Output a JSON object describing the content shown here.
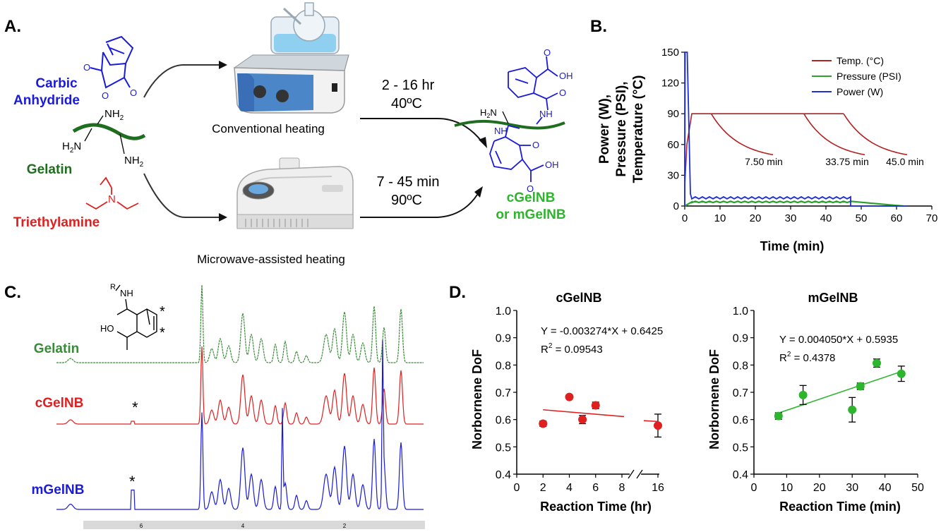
{
  "panels": {
    "a": "A.",
    "b": "B.",
    "c": "C.",
    "d": "D."
  },
  "panel_a": {
    "reagent_carbic": [
      "Carbic",
      "Anhydride"
    ],
    "reagent_gelatin": "Gelatin",
    "reagent_tea": "Triethylamine",
    "nh2": "NH",
    "nh2_sub": "2",
    "h2n_main": "H",
    "h2n_sub": "2",
    "h2n_end": "N",
    "conventional_label": "Conventional  heating",
    "microwave_label": "Microwave-assisted  heating",
    "cond_conv_time": "2 - 16 hr",
    "cond_conv_temp": "40ºC",
    "cond_mw_time": "7 - 45 min",
    "cond_mw_temp": "90ºC",
    "product_label_1": "cGelNB",
    "product_label_2": "or mGelNB",
    "oh": "OH",
    "nh": "NH",
    "o": "O",
    "n": "N",
    "colors": {
      "blue": "#1a1adb",
      "green": "#1f6e1f",
      "red": "#e02020",
      "product_green": "#2db52d"
    }
  },
  "panel_b": {
    "chart_data": {
      "type": "line",
      "title": "",
      "xlabel": "Time (min)",
      "ylabel_lines": [
        "Power (W),",
        "Pressure (PSI),",
        "Temperature (°C)"
      ],
      "xlim": [
        0,
        70
      ],
      "ylim": [
        0,
        150
      ],
      "xticks": [
        "0",
        "10",
        "20",
        "30",
        "40",
        "50",
        "60",
        "70"
      ],
      "yticks": [
        "0",
        "30",
        "60",
        "90",
        "120",
        "150"
      ],
      "legend": [
        "Temp. (°C)",
        "Pressure (PSI)",
        "Power (W)"
      ],
      "legend_colors": [
        "#b22222",
        "#2ca02c",
        "#1f2fd0"
      ],
      "annotations": [
        "7.50 min",
        "33.75 min",
        "45.0 min"
      ],
      "series": [
        {
          "name": "Temp. (°C)",
          "hold": 90,
          "cooldowns": [
            [
              7.5,
              25
            ],
            [
              33.75,
              51
            ],
            [
              45.0,
              63
            ]
          ]
        },
        {
          "name": "Pressure (PSI)",
          "plateau": 4,
          "end": 60
        },
        {
          "name": "Power (W)",
          "peak": 150,
          "plateau": 8,
          "end": 47
        }
      ]
    }
  },
  "panel_c": {
    "samples": [
      "Gelatin",
      "cGelNB",
      "mGelNB"
    ],
    "sample_colors": [
      "#3a8a3a",
      "#e02020",
      "#1a1adb"
    ],
    "star": "*",
    "r_label": "R",
    "nh": "NH",
    "ho": "HO",
    "ppm_ticks": [
      "6",
      "4",
      "2"
    ]
  },
  "panel_d": {
    "chart_data": [
      {
        "type": "scatter",
        "title": "cGelNB",
        "xlabel": "Reaction Time (hr)",
        "ylabel": "Norbornene DoF",
        "xticks": [
          "0",
          "2",
          "4",
          "6",
          "8",
          "16"
        ],
        "yticks": [
          "0.4",
          "0.5",
          "0.6",
          "0.7",
          "0.8",
          "0.9",
          "1.0"
        ],
        "ylim": [
          0.4,
          1.0
        ],
        "x": [
          2,
          4,
          5,
          6,
          16
        ],
        "y": [
          0.585,
          0.683,
          0.6,
          0.652,
          0.578
        ],
        "err": [
          0.01,
          0.0,
          0.015,
          0.012,
          0.042
        ],
        "color": "#e02020",
        "equation": "Y = -0.003274*X + 0.6425",
        "r2_label": "R",
        "r2_sup": "2",
        "r2_value": " =  0.09543"
      },
      {
        "type": "scatter",
        "title": "mGelNB",
        "xlabel": "Reaction Time (min)",
        "ylabel": "Norbornene DoF",
        "xticks": [
          "0",
          "10",
          "20",
          "30",
          "40",
          "50"
        ],
        "yticks": [
          "0.4",
          "0.5",
          "0.6",
          "0.7",
          "0.8",
          "0.9",
          "1.0"
        ],
        "xlim": [
          0,
          50
        ],
        "ylim": [
          0.4,
          1.0
        ],
        "x": [
          7.5,
          15,
          30,
          32.5,
          37.5,
          45
        ],
        "y": [
          0.613,
          0.69,
          0.636,
          0.722,
          0.807,
          0.768
        ],
        "err": [
          0.012,
          0.035,
          0.045,
          0.012,
          0.015,
          0.028
        ],
        "color": "#2db52d",
        "equation": "Y = 0.004050*X + 0.5935",
        "r2_label": "R",
        "r2_sup": "2",
        "r2_value": " =  0.4378"
      }
    ]
  }
}
